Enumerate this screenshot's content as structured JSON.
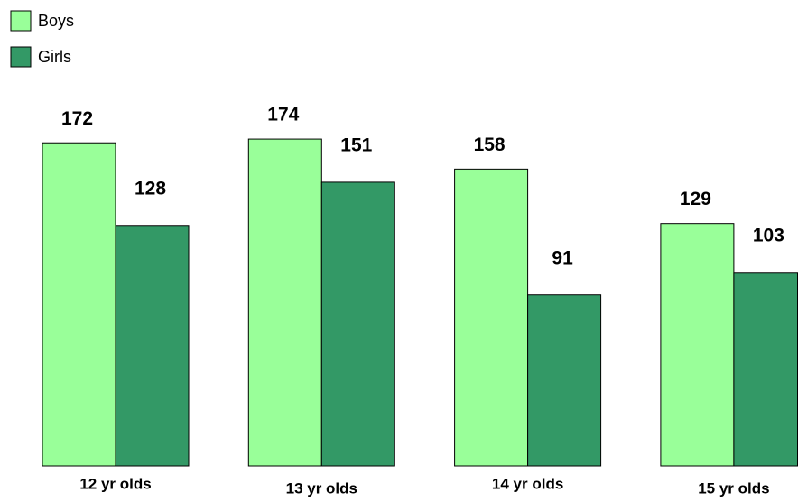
{
  "chart_data": {
    "type": "bar",
    "categories": [
      "12 yr olds",
      "13 yr olds",
      "14 yr olds",
      "15 yr olds"
    ],
    "series": [
      {
        "name": "Boys",
        "color": "#99ff99",
        "values": [
          172,
          174,
          158,
          129
        ]
      },
      {
        "name": "Girls",
        "color": "#339966",
        "values": [
          128,
          151,
          91,
          103
        ]
      }
    ],
    "legend": "top-left"
  }
}
